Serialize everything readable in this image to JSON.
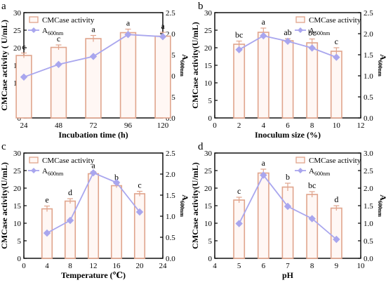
{
  "figure": {
    "panel_letters": [
      "a",
      "b",
      "c",
      "d"
    ]
  },
  "colors": {
    "bar_edge": "#e0a48c",
    "bar_fill": "#fff7f4",
    "line": "#a9a6ee",
    "axis": "#000000"
  },
  "chart_data": [
    {
      "type": "bar",
      "panel": "a",
      "xlabel": "Incubation time (h)",
      "ylabel": "CMCase activity ( U/mL)",
      "y2label": "A600nm",
      "x_ticks": [
        "24",
        "48",
        "72",
        "96",
        "120"
      ],
      "xlim": [
        24,
        120
      ],
      "ylim": [
        0,
        30
      ],
      "y_ticks": [
        "0",
        "5",
        "10",
        "15",
        "20",
        "25",
        "30"
      ],
      "y2lim": [
        0,
        2.5
      ],
      "y2_ticks": [
        "0.0",
        "0.5",
        "1.0",
        "1.5",
        "2.0",
        "2.5"
      ],
      "legend": {
        "bar_label": "CMCase activity",
        "line_label": "A600nm",
        "placement": "top-left"
      },
      "series": [
        {
          "name": "CMCase activity",
          "kind": "bar",
          "x": [
            24,
            48,
            72,
            96,
            120
          ],
          "values": [
            17.8,
            20.1,
            22.6,
            24.3,
            23.3
          ],
          "errors": [
            0.7,
            0.7,
            0.9,
            1.0,
            1.1
          ],
          "letters": [
            "c",
            "c",
            "a",
            "a",
            "a"
          ]
        },
        {
          "name": "A600nm",
          "kind": "line",
          "axis": "right",
          "x": [
            24,
            48,
            72,
            96,
            120
          ],
          "values": [
            0.97,
            1.27,
            1.46,
            1.98,
            1.93
          ]
        }
      ]
    },
    {
      "type": "bar",
      "panel": "b",
      "xlabel": "Inoculum size (%)",
      "ylabel": "CMCase activity(U/mL)",
      "y2label": "A600nm",
      "x_ticks": [
        "0",
        "2",
        "4",
        "6",
        "8",
        "10",
        "12"
      ],
      "xlim": [
        0,
        12
      ],
      "ylim": [
        0,
        30
      ],
      "y_ticks": [
        "0",
        "5",
        "10",
        "15",
        "20",
        "25",
        "30"
      ],
      "y2lim": [
        0,
        2.5
      ],
      "y2_ticks": [
        "0.0",
        "0.5",
        "1.0",
        "1.5",
        "2.0",
        "2.5"
      ],
      "legend": {
        "bar_label": "CMCase activity",
        "line_label": "A600nm",
        "placement": "top-right"
      },
      "series": [
        {
          "name": "CMCase activity",
          "kind": "bar",
          "x": [
            2,
            4,
            6,
            8,
            10
          ],
          "values": [
            21.0,
            24.4,
            22.0,
            21.4,
            19.0
          ],
          "errors": [
            0.9,
            1.2,
            0.6,
            1.1,
            1.0
          ],
          "letters": [
            "bc",
            "a",
            "ab",
            "bc",
            "c"
          ]
        },
        {
          "name": "A600nm",
          "kind": "line",
          "axis": "right",
          "x": [
            2,
            4,
            6,
            8,
            10
          ],
          "values": [
            1.62,
            1.95,
            1.82,
            1.66,
            1.44
          ]
        }
      ]
    },
    {
      "type": "bar",
      "panel": "c",
      "xlabel": "Temperature (℃)",
      "ylabel": "CMCase activity(U/mL)",
      "y2label": "A600nm",
      "x_ticks": [
        "0",
        "4",
        "8",
        "12",
        "16",
        "20",
        "24"
      ],
      "xlim": [
        0,
        24
      ],
      "ylim": [
        0,
        30
      ],
      "y_ticks": [
        "0",
        "5",
        "10",
        "15",
        "20",
        "25",
        "30"
      ],
      "y2lim": [
        0,
        2.5
      ],
      "y2_ticks": [
        "0.0",
        "0.5",
        "1.0",
        "1.5",
        "2.0",
        "2.5"
      ],
      "legend": {
        "bar_label": "CMCase activity",
        "line_label": "A600nm",
        "placement": "top-left"
      },
      "series": [
        {
          "name": "CMCase activity",
          "kind": "bar",
          "x": [
            4,
            8,
            12,
            16,
            20
          ],
          "values": [
            14.1,
            16.3,
            24.1,
            20.7,
            18.4
          ],
          "errors": [
            0.8,
            0.7,
            0.6,
            0.6,
            0.7
          ],
          "letters": [
            "e",
            "d",
            "a",
            "b",
            "c"
          ]
        },
        {
          "name": "A600nm",
          "kind": "line",
          "axis": "right",
          "x": [
            4,
            8,
            12,
            16,
            20
          ],
          "values": [
            0.6,
            0.9,
            2.03,
            1.8,
            1.1
          ]
        }
      ]
    },
    {
      "type": "bar",
      "panel": "d",
      "xlabel": "pH",
      "ylabel": "CMCase activity(U/mL)",
      "y2label": "A600nm",
      "x_ticks": [
        "4",
        "5",
        "6",
        "7",
        "8",
        "9",
        "10"
      ],
      "xlim": [
        4,
        10
      ],
      "ylim": [
        0,
        30
      ],
      "y_ticks": [
        "0",
        "5",
        "10",
        "15",
        "20",
        "25",
        "30"
      ],
      "y2lim": [
        0,
        3.0
      ],
      "y2_ticks": [
        "0.0",
        "0.5",
        "1.0",
        "1.5",
        "2.0",
        "2.5",
        "3.0"
      ],
      "legend": {
        "bar_label": "CMCase activity",
        "line_label": "A600nm",
        "placement": "top-right"
      },
      "series": [
        {
          "name": "CMCase activity",
          "kind": "bar",
          "x": [
            5,
            6,
            7,
            8,
            9
          ],
          "values": [
            16.6,
            24.3,
            20.3,
            18.2,
            14.3
          ],
          "errors": [
            0.8,
            1.1,
            1.1,
            0.8,
            0.7
          ],
          "letters": [
            "c",
            "a",
            "b",
            "bc",
            "d"
          ]
        },
        {
          "name": "A600nm",
          "kind": "line",
          "axis": "right",
          "x": [
            5,
            6,
            7,
            8,
            9
          ],
          "values": [
            0.99,
            2.37,
            1.48,
            1.13,
            0.54
          ]
        }
      ]
    }
  ]
}
